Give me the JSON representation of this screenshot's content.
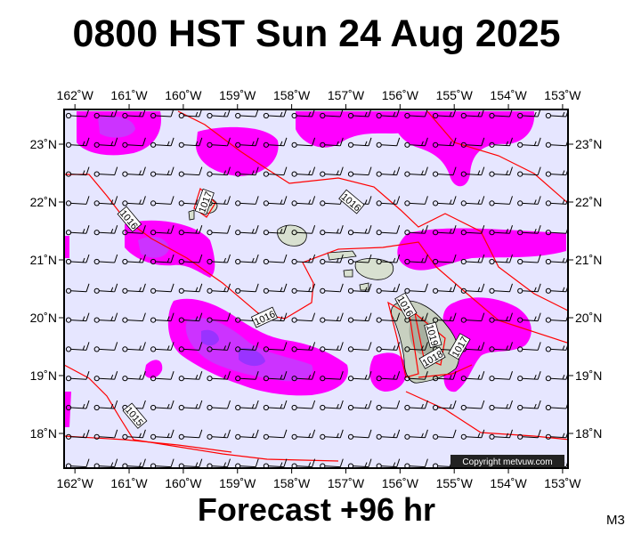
{
  "title": "0800 HST Sun 24 Aug 2025",
  "footer": "Forecast +96 hr",
  "model_label": "M3",
  "copyright": "Copyright metvuw.com",
  "colors": {
    "ocean": "#e6e6ff",
    "rain_light": "#ff00ff",
    "rain_medium": "#cc33ff",
    "rain_heavy": "#9933ff",
    "isobar": "#ff0000",
    "land": "#d8e0d0",
    "wind_barb": "#000000"
  },
  "map": {
    "lon_range": [
      -162.2,
      -152.9
    ],
    "lat_range": [
      17.4,
      23.6
    ],
    "x_ticks": [
      "162˚W",
      "161˚W",
      "160˚W",
      "159˚W",
      "158˚W",
      "157˚W",
      "156˚W",
      "155˚W",
      "154˚W",
      "153˚W"
    ],
    "x_tick_values": [
      -162,
      -161,
      -160,
      -159,
      -158,
      -157,
      -156,
      -155,
      -154,
      -153
    ],
    "y_ticks": [
      "23˚N",
      "22˚N",
      "21˚N",
      "20˚N",
      "19˚N",
      "18˚N"
    ],
    "y_tick_values": [
      23,
      22,
      21,
      20,
      19,
      18
    ],
    "isobar_labels": [
      {
        "text": "1017",
        "lon": -159.6,
        "lat": 22.0,
        "angle": -70
      },
      {
        "text": "1016",
        "lon": -161.0,
        "lat": 21.7,
        "angle": 50
      },
      {
        "text": "1016",
        "lon": -156.9,
        "lat": 22.0,
        "angle": 40
      },
      {
        "text": "1016",
        "lon": -158.5,
        "lat": 20.0,
        "angle": -25
      },
      {
        "text": "1016",
        "lon": -155.9,
        "lat": 20.2,
        "angle": 60
      },
      {
        "text": "1019",
        "lon": -155.4,
        "lat": 19.7,
        "angle": 75
      },
      {
        "text": "1018",
        "lon": -155.4,
        "lat": 19.3,
        "angle": -30
      },
      {
        "text": "1017",
        "lon": -154.9,
        "lat": 19.5,
        "angle": -60
      },
      {
        "text": "1015",
        "lon": -160.9,
        "lat": 18.3,
        "angle": 50
      }
    ]
  }
}
